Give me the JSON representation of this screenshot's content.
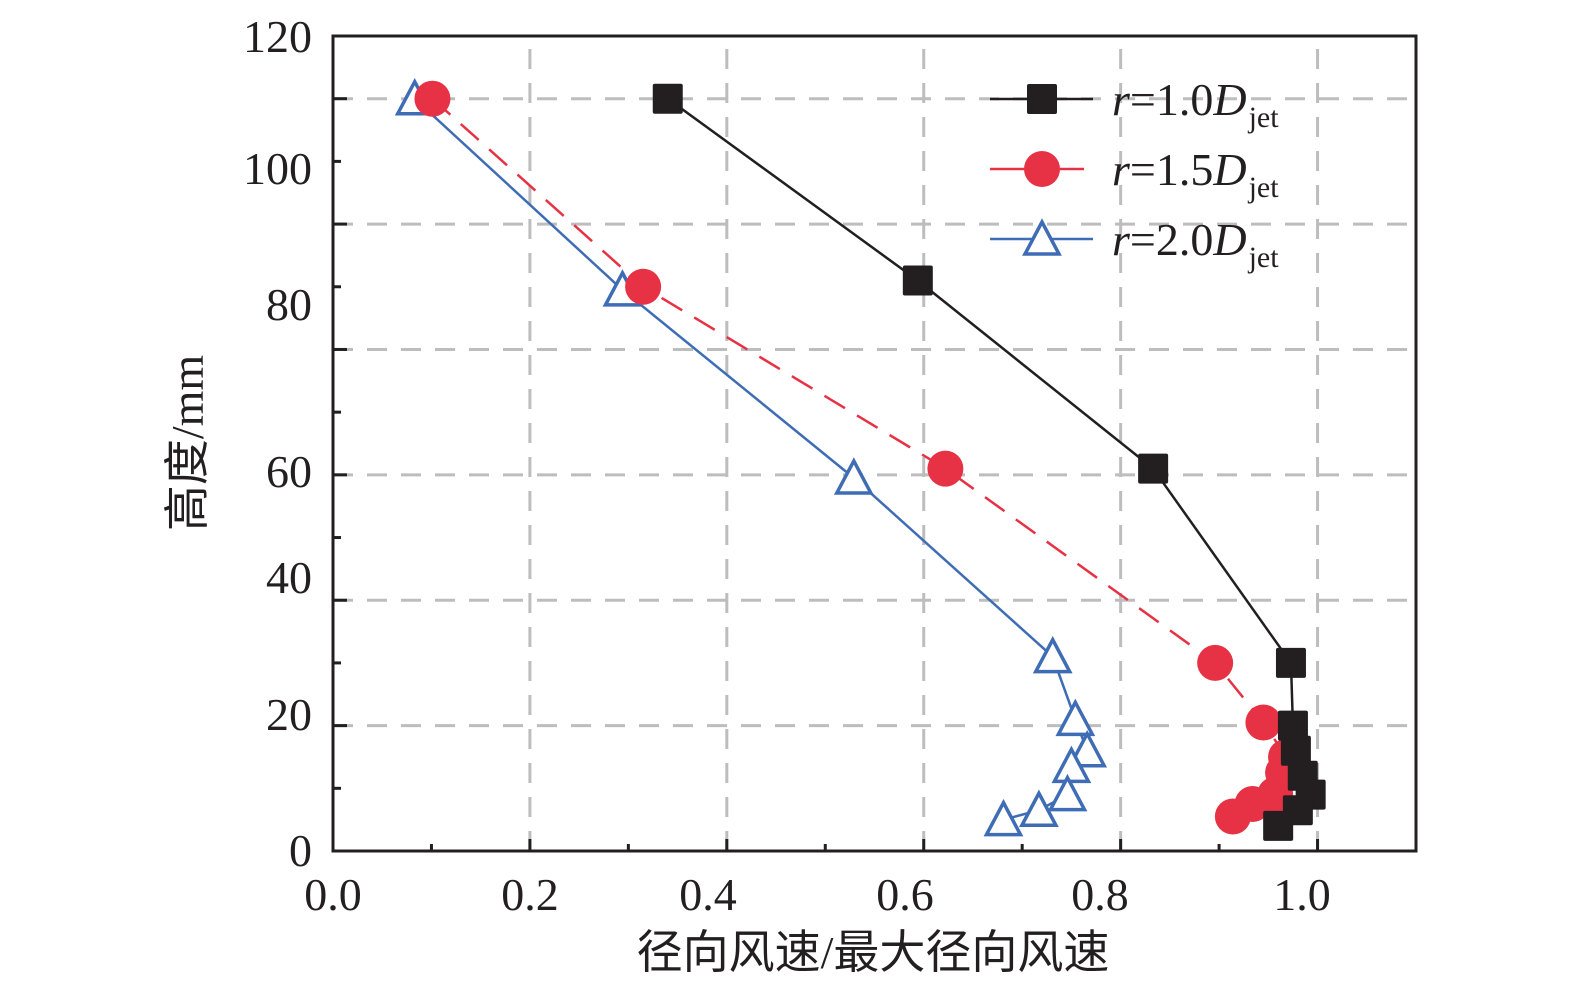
{
  "chart_data": {
    "type": "line",
    "title": "",
    "xlabel": "径向风速/最大径向风速",
    "ylabel": "高度/mm",
    "xlim": [
      0.0,
      1.1
    ],
    "ylim": [
      0,
      130
    ],
    "x_ticks": [
      0.0,
      0.2,
      0.4,
      0.6,
      0.8,
      1.0
    ],
    "x_tick_labels": [
      "0.0",
      "0.2",
      "0.4",
      "0.6",
      "0.8",
      "1.0"
    ],
    "x_minor_step": 0.1,
    "y_ticks": [
      0,
      20,
      40,
      60,
      80,
      100,
      120
    ],
    "y_tick_labels": [
      "0",
      "20",
      "40",
      "60",
      "80",
      "100",
      "120"
    ],
    "y_minor_step": 10,
    "grid": true,
    "grid_style": "dashed",
    "legend_position": "top-right",
    "series": [
      {
        "name": "r=1.0Djet",
        "label_main": "r",
        "label_eq": "=1.0",
        "label_D": "D",
        "label_sub": "jet",
        "color": "#231f20",
        "marker": "square",
        "line_style": "solid",
        "x": [
          0.34,
          0.594,
          0.833,
          0.973,
          0.975,
          0.978,
          0.985,
          0.993,
          0.98,
          0.96
        ],
        "y": [
          120,
          91,
          61,
          30,
          20,
          16,
          12,
          9,
          6.5,
          4
        ]
      },
      {
        "name": "r=1.5Djet",
        "label_main": "r",
        "label_eq": "=1.5",
        "label_D": "D",
        "label_sub": "jet",
        "color": "#e63244",
        "marker": "circle",
        "line_style": "dashed",
        "x": [
          0.101,
          0.315,
          0.622,
          0.896,
          0.945,
          0.968,
          0.965,
          0.957,
          0.934,
          0.914
        ],
        "y": [
          120,
          90,
          61,
          30,
          20.5,
          15,
          12.5,
          9,
          7.5,
          5.5
        ]
      },
      {
        "name": "r=2.0Djet",
        "label_main": "r",
        "label_eq": "=2.0",
        "label_D": "D",
        "label_sub": "jet",
        "color": "#3f6db5",
        "marker": "triangle",
        "line_style": "solid",
        "x": [
          0.083,
          0.294,
          0.529,
          0.731,
          0.754,
          0.766,
          0.75,
          0.746,
          0.717,
          0.681
        ],
        "y": [
          120,
          89.5,
          59.5,
          31,
          21,
          16,
          13.5,
          9,
          6.5,
          5
        ]
      }
    ]
  }
}
